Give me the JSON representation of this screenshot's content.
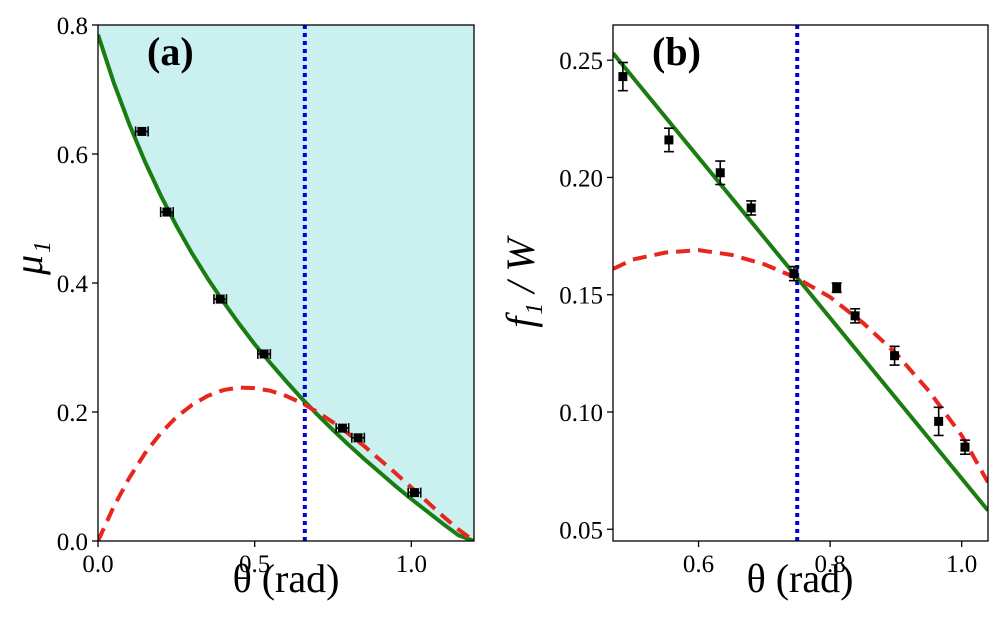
{
  "figure": {
    "background": "#ffffff"
  },
  "chart_data": [
    {
      "panel": "a",
      "type": "line",
      "title": "(a)",
      "xlabel": "θ  (rad)",
      "ylabel": "μ₁",
      "xlim": [
        0.0,
        1.2
      ],
      "ylim": [
        0.0,
        0.8
      ],
      "xticks": [
        0.0,
        0.5,
        1.0
      ],
      "xtick_labels": [
        "0.0",
        "0.5",
        "1.0"
      ],
      "yticks": [
        0.0,
        0.2,
        0.4,
        0.6,
        0.8
      ],
      "ytick_labels": [
        "0.0",
        "0.2",
        "0.4",
        "0.6",
        "0.8"
      ],
      "grid": false,
      "shaded_region": {
        "description": "area above green curve",
        "color": "#cbf0f0"
      },
      "vline": {
        "x": 0.66,
        "color": "#0000dd",
        "style": "dotted"
      },
      "series": [
        {
          "name": "green-curve",
          "style": "solid",
          "color": "#1a7d12",
          "x": [
            0.0,
            0.05,
            0.1,
            0.15,
            0.2,
            0.25,
            0.3,
            0.35,
            0.4,
            0.45,
            0.5,
            0.55,
            0.6,
            0.65,
            0.7,
            0.75,
            0.8,
            0.85,
            0.9,
            0.95,
            1.0,
            1.05,
            1.1,
            1.15,
            1.2
          ],
          "y": [
            0.785,
            0.711,
            0.646,
            0.588,
            0.536,
            0.489,
            0.446,
            0.407,
            0.371,
            0.337,
            0.305,
            0.276,
            0.248,
            0.221,
            0.196,
            0.172,
            0.149,
            0.127,
            0.106,
            0.085,
            0.065,
            0.046,
            0.027,
            0.009,
            0.0
          ]
        },
        {
          "name": "red-dashed-curve",
          "style": "dashed",
          "color": "#e8261e",
          "x": [
            0.0,
            0.05,
            0.1,
            0.15,
            0.2,
            0.25,
            0.3,
            0.35,
            0.4,
            0.45,
            0.5,
            0.55,
            0.6,
            0.65,
            0.7,
            0.75,
            0.8,
            0.85,
            0.9,
            0.95,
            1.0,
            1.05,
            1.1,
            1.15,
            1.2
          ],
          "y": [
            0.0,
            0.053,
            0.098,
            0.136,
            0.167,
            0.192,
            0.211,
            0.225,
            0.234,
            0.238,
            0.237,
            0.233,
            0.225,
            0.214,
            0.2,
            0.184,
            0.166,
            0.147,
            0.126,
            0.105,
            0.083,
            0.061,
            0.039,
            0.018,
            0.0
          ]
        },
        {
          "name": "measurements",
          "style": "markers",
          "marker": "square",
          "color": "#000000",
          "x": [
            0.14,
            0.22,
            0.39,
            0.53,
            0.78,
            0.83,
            1.01
          ],
          "y": [
            0.635,
            0.51,
            0.375,
            0.29,
            0.175,
            0.16,
            0.075
          ],
          "xerr": [
            0.02,
            0.02,
            0.02,
            0.02,
            0.02,
            0.02,
            0.02
          ]
        }
      ]
    },
    {
      "panel": "b",
      "type": "line",
      "title": "(b)",
      "xlabel": "θ (rad)",
      "ylabel": "f₁ / W",
      "xlim": [
        0.47,
        1.04
      ],
      "ylim": [
        0.045,
        0.265
      ],
      "xticks": [
        0.6,
        0.8,
        1.0
      ],
      "xtick_labels": [
        "0.6",
        "0.8",
        "1.0"
      ],
      "yticks": [
        0.05,
        0.1,
        0.15,
        0.2,
        0.25
      ],
      "ytick_labels": [
        "0.05",
        "0.10",
        "0.15",
        "0.20",
        "0.25"
      ],
      "grid": false,
      "vline": {
        "x": 0.75,
        "color": "#0000dd",
        "style": "dotted"
      },
      "series": [
        {
          "name": "green-line",
          "style": "solid",
          "color": "#1a7d12",
          "x": [
            0.47,
            1.04
          ],
          "y": [
            0.253,
            0.058
          ]
        },
        {
          "name": "red-dashed-curve",
          "style": "dashed",
          "color": "#e8261e",
          "x": [
            0.47,
            0.5,
            0.55,
            0.6,
            0.65,
            0.7,
            0.75,
            0.8,
            0.85,
            0.9,
            0.95,
            1.0,
            1.04
          ],
          "y": [
            0.161,
            0.165,
            0.168,
            0.169,
            0.167,
            0.163,
            0.157,
            0.149,
            0.138,
            0.125,
            0.109,
            0.09,
            0.07
          ]
        },
        {
          "name": "measurements",
          "style": "markers",
          "marker": "square",
          "color": "#000000",
          "x": [
            0.485,
            0.555,
            0.633,
            0.68,
            0.745,
            0.81,
            0.838,
            0.898,
            0.965,
            1.005
          ],
          "y": [
            0.243,
            0.216,
            0.202,
            0.187,
            0.159,
            0.153,
            0.141,
            0.124,
            0.096,
            0.085
          ],
          "yerr": [
            0.006,
            0.005,
            0.005,
            0.003,
            0.003,
            0.002,
            0.003,
            0.004,
            0.006,
            0.003
          ]
        }
      ]
    }
  ]
}
